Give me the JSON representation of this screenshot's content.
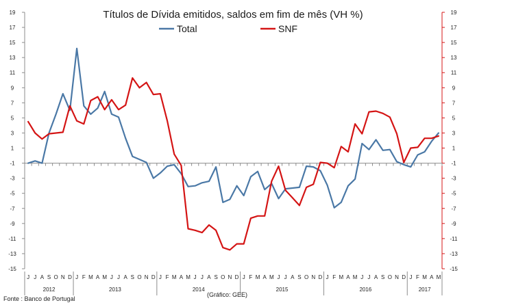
{
  "chart_data": {
    "type": "line",
    "title": "Títulos de Dívida emitidos, saldos em fim de mês  (VH %)",
    "ylim": [
      -15,
      19
    ],
    "yticks": [
      -15,
      -13,
      -11,
      -9,
      -7,
      -5,
      -3,
      -1,
      1,
      3,
      5,
      7,
      9,
      11,
      13,
      15,
      17,
      19
    ],
    "series_colors": [
      "#4A78A6",
      "#D41414"
    ],
    "month_letters": [
      "J",
      "J",
      "A",
      "S",
      "O",
      "N",
      "D",
      "J",
      "F",
      "M",
      "A",
      "M",
      "J",
      "J",
      "A",
      "S",
      "O",
      "N",
      "D",
      "J",
      "F",
      "M",
      "A",
      "M",
      "J",
      "J",
      "A",
      "S",
      "O",
      "N",
      "D",
      "J",
      "F",
      "M",
      "A",
      "M",
      "J",
      "J",
      "A",
      "S",
      "O",
      "N",
      "D",
      "J",
      "F",
      "M",
      "A",
      "M",
      "J",
      "J",
      "A",
      "S",
      "O",
      "N",
      "D",
      "J",
      "F",
      "M",
      "A",
      "M"
    ],
    "years": [
      {
        "label": "2012",
        "start": 0,
        "count": 7
      },
      {
        "label": "2013",
        "start": 7,
        "count": 12
      },
      {
        "label": "2014",
        "start": 19,
        "count": 12
      },
      {
        "label": "2015",
        "start": 31,
        "count": 12
      },
      {
        "label": "2016",
        "start": 43,
        "count": 12
      },
      {
        "label": "2017",
        "start": 55,
        "count": 5
      }
    ],
    "series": [
      {
        "name": "Total",
        "values": [
          -1.0,
          -0.7,
          -1.0,
          3.0,
          5.5,
          8.2,
          6.0,
          14.2,
          6.6,
          5.5,
          6.3,
          8.5,
          5.5,
          5.1,
          2.3,
          -0.1,
          -0.5,
          -0.9,
          -3.0,
          -2.3,
          -1.4,
          -1.2,
          -2.4,
          -4.1,
          -4.0,
          -3.6,
          -3.4,
          -1.5,
          -6.2,
          -5.8,
          -4.0,
          -5.3,
          -2.8,
          -2.1,
          -4.5,
          -3.7,
          -5.7,
          -4.4,
          -4.3,
          -4.2,
          -1.4,
          -1.5,
          -2.0,
          -3.9,
          -6.9,
          -6.2,
          -4.0,
          -3.1,
          1.6,
          0.8,
          2.1,
          0.7,
          0.8,
          -0.8,
          -1.2,
          -1.5,
          0.1,
          0.5,
          1.9,
          3.0
        ]
      },
      {
        "name": "SNF",
        "values": [
          4.5,
          3.0,
          2.2,
          2.9,
          3.0,
          3.1,
          6.6,
          4.6,
          4.2,
          7.3,
          7.8,
          6.1,
          7.4,
          6.1,
          6.7,
          10.3,
          9.0,
          9.7,
          8.1,
          8.2,
          4.6,
          0.2,
          -1.3,
          -9.7,
          -9.9,
          -10.2,
          -9.2,
          -9.9,
          -12.2,
          -12.5,
          -11.7,
          -11.7,
          -8.3,
          -8.0,
          -8.0,
          -3.4,
          -1.4,
          -4.6,
          -5.6,
          -6.6,
          -4.2,
          -3.8,
          -0.9,
          -1.0,
          -1.6,
          1.2,
          0.5,
          4.2,
          2.9,
          5.8,
          5.9,
          5.6,
          5.1,
          2.9,
          -0.9,
          1.0,
          1.1,
          2.3,
          2.3,
          2.6
        ]
      }
    ]
  },
  "footer": {
    "source": "Fonte : Banco de Portugal",
    "credit": "(Gráfico: GEE)"
  }
}
